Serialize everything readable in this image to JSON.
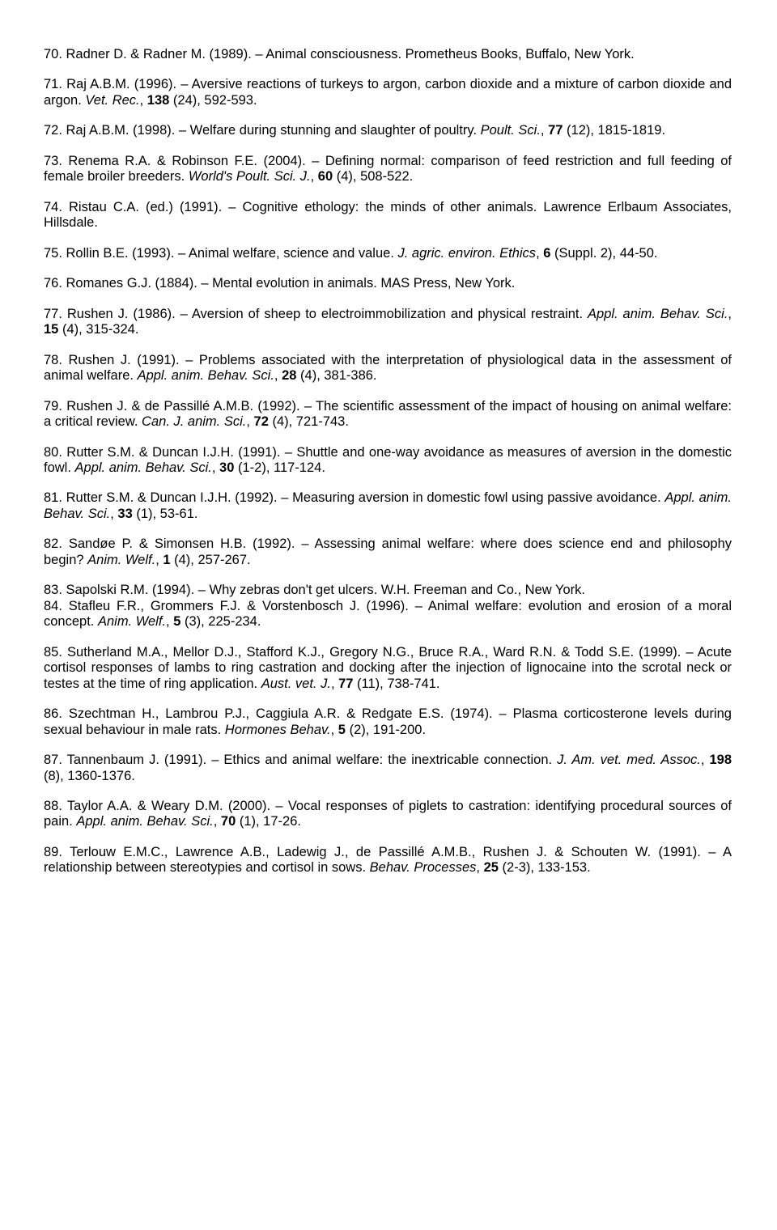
{
  "refs": [
    "70. Radner D. & Radner M. (1989). – Animal consciousness. Prometheus Books, Buffalo, New York.",
    "71. Raj A.B.M. (1996). – Aversive reactions of turkeys to argon, carbon dioxide and a mixture of carbon dioxide and argon. <i>Vet. Rec.</i>, <b>138</b> (24), 592-593.",
    "72. Raj A.B.M. (1998). – Welfare during stunning and slaughter of poultry. <i>Poult. Sci.</i>, <b>77</b> (12), 1815-1819.",
    "73. Renema R.A. & Robinson F.E. (2004). – Defining normal: comparison of feed restriction and full feeding of female broiler breeders. <i>World's Poult. Sci. J.</i>, <b>60</b> (4), 508-522.",
    "74. Ristau C.A. (ed.) (1991). – Cognitive ethology: the minds of other animals.  Lawrence Erlbaum Associates, Hillsdale.",
    "75. Rollin B.E. (1993). – Animal welfare, science and value. <i>J. agric. environ. Ethics</i>, <b>6</b> (Suppl. 2), 44-50.",
    "76. Romanes G.J. (1884). – Mental evolution in animals. MAS Press, New York.",
    "77. Rushen J. (1986). – Aversion of sheep to electroimmobilization and physical restraint. <i>Appl. anim. Behav. Sci.</i>, <b>15</b> (4), 315-324.",
    "78. Rushen J. (1991). – Problems associated with the interpretation of physiological data in the assessment of animal welfare. <i>Appl. anim. Behav. Sci.</i>, <b>28</b> (4), 381-386.",
    "79. Rushen J. & de Passillé A.M.B. (1992). – The scientific assessment of the impact of housing on animal welfare: a critical review. <i>Can. J. anim. Sci.</i>, <b>72</b> (4), 721-743.",
    "80. Rutter S.M. & Duncan I.J.H. (1991). – Shuttle and one-way avoidance as measures of aversion in the domestic fowl. <i>Appl. anim. Behav. Sci.</i>, <b>30</b> (1-2), 117-124.",
    "81. Rutter S.M. & Duncan I.J.H. (1992). – Measuring aversion in domestic fowl using passive avoidance. <i>Appl. anim. Behav. Sci.</i>, <b>33</b> (1), 53-61.",
    "82. Sandøe P. & Simonsen H.B. (1992). – Assessing animal welfare: where does science end and philosophy begin? <i>Anim. Welf.</i>, <b>1</b> (4), 257-267.",
    "83. Sapolski R.M. (1994). – Why zebras don't get ulcers. W.H. Freeman and Co., New York.|||84. Stafleu F.R., Grommers F.J. & Vorstenbosch J. (1996). – Animal welfare: evolution and erosion of a moral concept. <i>Anim. Welf.</i>, <b>5</b> (3), 225-234.",
    "85. Sutherland M.A., Mellor D.J., Stafford K.J., Gregory N.G., Bruce R.A., Ward R.N. & Todd S.E. (1999). – Acute cortisol responses of lambs to ring castration and docking after the injection of lignocaine into the scrotal neck or testes at the time of ring application. <i>Aust. vet. J.</i>, <b>77</b> (11), 738-741.",
    "86. Szechtman H., Lambrou P.J., Caggiula A.R. & Redgate E.S. (1974). – Plasma corticosterone levels during sexual behaviour in male rats. <i>Hormones Behav.</i>, <b>5</b> (2), 191-200.",
    "87. Tannenbaum J. (1991). – Ethics and animal welfare: the inextricable connection. <i>J. Am. vet. med. Assoc.</i>, <b>198</b> (8), 1360-1376.",
    "88. Taylor A.A. & Weary D.M. (2000). – Vocal responses of piglets to castration: identifying procedural sources of pain. <i>Appl. anim. Behav. Sci.</i>, <b>70</b> (1), 17-26.",
    "89. Terlouw E.M.C., Lawrence A.B., Ladewig J., de Passillé A.M.B., Rushen J. & Schouten W. (1991). – A relationship between stereotypies and cortisol in sows. <i>Behav. Processes</i>, <b>25</b> (2-3), 133-153."
  ]
}
